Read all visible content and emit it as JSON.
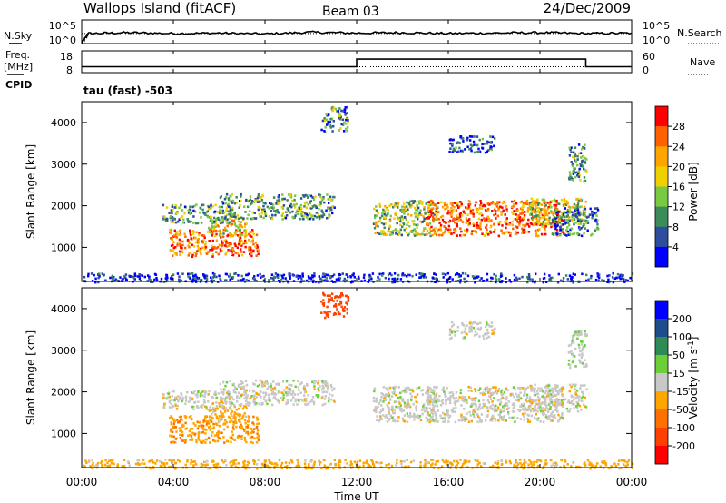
{
  "header": {
    "station": "Wallops Island (fitACF)",
    "beam": "Beam 03",
    "date": "24/Dec/2009"
  },
  "cpid_label": "CPID",
  "cpid_text": "tau (fast) -503",
  "time_axis": {
    "label": "Time UT",
    "ticks": [
      "00:00",
      "04:00",
      "08:00",
      "12:00",
      "16:00",
      "20:00",
      "00:00"
    ],
    "range_hours": [
      0,
      24
    ]
  },
  "chart_data": [
    {
      "type": "line",
      "name": "nsky-nsearch",
      "left_label": "N.Sky",
      "right_label": "N.Search",
      "left_ticks": [
        "10^5",
        "10^0"
      ],
      "right_ticks": [
        "10^5",
        "10^0"
      ],
      "x": [
        0,
        0.3,
        2,
        4,
        6,
        8,
        10,
        12,
        14,
        16,
        18,
        20,
        22,
        24
      ],
      "nsky_log10": [
        0,
        2.1,
        2.3,
        2.1,
        2.2,
        2.0,
        2.4,
        2.2,
        2.3,
        2.1,
        2.2,
        2.3,
        2.1,
        2.2
      ],
      "nsearch_log10": [
        2.1,
        2.1,
        2.1,
        2.1,
        2.1,
        2.1,
        2.1,
        2.1,
        2.1,
        2.1,
        2.1,
        2.1,
        2.1,
        2.1
      ]
    },
    {
      "type": "line",
      "name": "freq-nave",
      "left_label_top": "Freq.",
      "left_label_bottom": "[MHz]",
      "right_label": "Nave",
      "left_ticks": [
        "18",
        "8"
      ],
      "right_ticks": [
        "60",
        "0"
      ],
      "freq_ylim": [
        8,
        18
      ],
      "nave_ylim": [
        0,
        60
      ],
      "freq_x": [
        0,
        12,
        12,
        22,
        22,
        24
      ],
      "freq_y": [
        10.5,
        10.5,
        14.3,
        14.3,
        10.5,
        10.5
      ],
      "nave_x": [
        0,
        24
      ],
      "nave_y": [
        15,
        15
      ]
    },
    {
      "type": "heatmap",
      "name": "power",
      "ylabel": "Slant Range [km]",
      "ylim": [
        180,
        4500
      ],
      "yticks": [
        "4000",
        "3000",
        "2000",
        "1000"
      ],
      "colorbar_label": "Power [dB]",
      "colorbar_ticks": [
        "28",
        "24",
        "20",
        "16",
        "12",
        "8",
        "4"
      ],
      "colorbar_colors": [
        "#ff0000",
        "#ff6000",
        "#ffa500",
        "#f0d000",
        "#7ac943",
        "#3c8c5a",
        "#2c4e9c",
        "#0000ff"
      ],
      "regions": [
        {
          "x": [
            3.8,
            7.7
          ],
          "y": [
            800,
            1450
          ],
          "level": 0.8
        },
        {
          "x": [
            5.5,
            7.2
          ],
          "y": [
            1300,
            1700
          ],
          "level": 0.6
        },
        {
          "x": [
            3.5,
            6.5
          ],
          "y": [
            1600,
            2050
          ],
          "level": 0.35
        },
        {
          "x": [
            6.0,
            11.0
          ],
          "y": [
            1700,
            2300
          ],
          "level": 0.35
        },
        {
          "x": [
            12.7,
            15.5
          ],
          "y": [
            1300,
            2150
          ],
          "level": 0.45
        },
        {
          "x": [
            15.0,
            21.0
          ],
          "y": [
            1300,
            2150
          ],
          "level": 0.8
        },
        {
          "x": [
            19.5,
            22.0
          ],
          "y": [
            1550,
            2200
          ],
          "level": 0.5
        },
        {
          "x": [
            20.5,
            22.5
          ],
          "y": [
            1300,
            2000
          ],
          "level": 0.25
        },
        {
          "x": [
            16.0,
            18.0
          ],
          "y": [
            3300,
            3700
          ],
          "level": 0.15
        },
        {
          "x": [
            10.4,
            11.6
          ],
          "y": [
            3800,
            4400
          ],
          "level": 0.3
        },
        {
          "x": [
            21.2,
            22.0
          ],
          "y": [
            2600,
            3500
          ],
          "level": 0.3
        },
        {
          "x": [
            0.0,
            24.0
          ],
          "y": [
            180,
            400
          ],
          "level": 0.1
        }
      ]
    },
    {
      "type": "heatmap",
      "name": "velocity",
      "ylabel": "Slant Range [km]",
      "ylim": [
        180,
        4500
      ],
      "yticks": [
        "4000",
        "3000",
        "2000",
        "1000"
      ],
      "colorbar_label": "Velocity [m s-1]",
      "colorbar_label_main": "Velocity [m s",
      "colorbar_label_sup": "-1",
      "colorbar_label_end": "]",
      "colorbar_ticks": [
        "200",
        "100",
        "50",
        "15",
        "-15",
        "-50",
        "-100",
        "-200"
      ],
      "colorbar_colors": [
        "#0000ff",
        "#1e4d8c",
        "#2e8b57",
        "#6ccf3a",
        "#c8c8c8",
        "#ffa500",
        "#ff7000",
        "#ff4000",
        "#ff0000"
      ],
      "regions": [
        {
          "x": [
            3.8,
            7.7
          ],
          "y": [
            800,
            1450
          ],
          "value": -40
        },
        {
          "x": [
            5.5,
            7.2
          ],
          "y": [
            1300,
            1700
          ],
          "value": -30
        },
        {
          "x": [
            3.5,
            6.5
          ],
          "y": [
            1600,
            2050
          ],
          "value": 0
        },
        {
          "x": [
            6.0,
            11.0
          ],
          "y": [
            1700,
            2300
          ],
          "value": 0
        },
        {
          "x": [
            12.7,
            15.5
          ],
          "y": [
            1300,
            2150
          ],
          "value": 0
        },
        {
          "x": [
            15.0,
            21.0
          ],
          "y": [
            1300,
            2150
          ],
          "value": 0
        },
        {
          "x": [
            19.5,
            22.0
          ],
          "y": [
            1550,
            2200
          ],
          "value": 0
        },
        {
          "x": [
            16.0,
            18.0
          ],
          "y": [
            3300,
            3700
          ],
          "value": 0
        },
        {
          "x": [
            10.4,
            11.6
          ],
          "y": [
            3800,
            4400
          ],
          "value": -180
        },
        {
          "x": [
            21.2,
            22.0
          ],
          "y": [
            2600,
            3500
          ],
          "value": 10
        },
        {
          "x": [
            0.0,
            24.0
          ],
          "y": [
            180,
            400
          ],
          "value": -30
        }
      ]
    }
  ]
}
